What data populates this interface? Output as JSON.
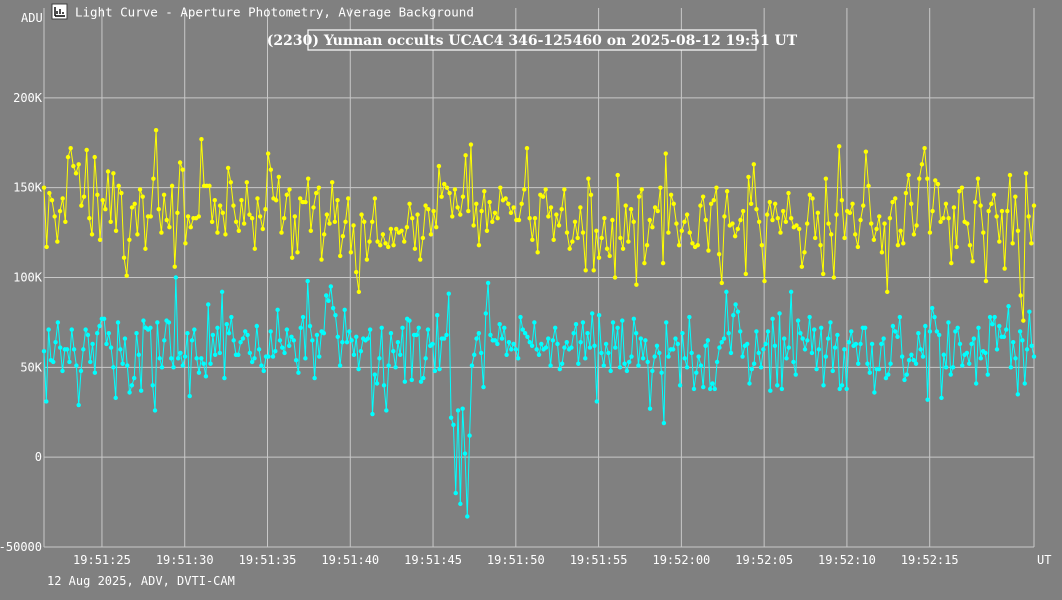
{
  "window": {
    "title": "Light Curve - Aperture Photometry, Average Background",
    "icon": "chart-icon"
  },
  "footer": "12 Aug 2025, ADV, DVTI-CAM",
  "colors": {
    "background": "#808080",
    "grid": "#c8c8c8",
    "target": "#ffff00",
    "comparison": "#00ffff",
    "text": "#ffffff"
  },
  "chart_data": {
    "type": "line",
    "title": "(2230) Yunnan occults UCAC4 346-125460 on 2025-08-12  19:51 UT",
    "ylabel": "ADU",
    "xlabel": "UT",
    "ylim": [
      -50000,
      250000
    ],
    "xlim": [
      "19:51:21.5",
      "19:52:21.3"
    ],
    "grid": true,
    "yticks": [
      {
        "value": 200000,
        "label": "200K"
      },
      {
        "value": 150000,
        "label": "150K"
      },
      {
        "value": 100000,
        "label": "100K"
      },
      {
        "value": 50000,
        "label": "50K"
      },
      {
        "value": 0,
        "label": "0"
      },
      {
        "value": -50000,
        "label": "-50000"
      }
    ],
    "xticks": [
      {
        "t": "19:51:25",
        "label": "19:51:25"
      },
      {
        "t": "19:51:30",
        "label": "19:51:30"
      },
      {
        "t": "19:51:35",
        "label": "19:51:35"
      },
      {
        "t": "19:51:40",
        "label": "19:51:40"
      },
      {
        "t": "19:51:45",
        "label": "19:51:45"
      },
      {
        "t": "19:51:50",
        "label": "19:51:50"
      },
      {
        "t": "19:51:55",
        "label": "19:51:55"
      },
      {
        "t": "19:52:00",
        "label": "19:52:00"
      },
      {
        "t": "19:52:05",
        "label": "19:52:05"
      },
      {
        "t": "19:52:10",
        "label": "19:52:10"
      },
      {
        "t": "19:52:15",
        "label": "19:52:15"
      }
    ],
    "frame_rate_hz": 5,
    "series": [
      {
        "values": [
          150000,
          117000,
          147000,
          143000,
          134000,
          120000,
          137000,
          144000,
          131000,
          167000,
          172000,
          162000,
          158000,
          163000,
          140000,
          145000,
          171000,
          133000,
          124000,
          167000,
          146000,
          121000,
          143000,
          138000,
          159000,
          131000,
          158000,
          126000,
          151000,
          147000,
          111000,
          101000,
          121000,
          139000,
          141000,
          124000,
          149000,
          145000,
          116000,
          134000,
          134000,
          155000,
          182000,
          138000,
          125000,
          146000,
          132000,
          128000,
          151000,
          106000,
          136000,
          164000,
          160000,
          119000,
          134000,
          128000,
          133000,
          133000,
          134000,
          177000,
          151000,
          151000,
          151000,
          131000,
          143000,
          125000,
          140000,
          136000,
          124000,
          161000,
          153000,
          140000,
          131000,
          126000,
          143000,
          130000,
          153000,
          135000,
          133000,
          116000,
          144000,
          134000,
          127000,
          138000,
          169000,
          160000,
          144000,
          143000,
          156000,
          125000,
          133000,
          146000,
          149000,
          111000,
          134000,
          114000,
          144000,
          142000,
          142000,
          155000,
          126000,
          139000,
          147000,
          150000,
          110000,
          124000,
          135000,
          130000,
          153000,
          131000,
          143000,
          112000,
          123000,
          131000,
          144000,
          114000,
          129000,
          103000,
          92000,
          135000,
          131000,
          110000,
          120000,
          131000,
          144000,
          120000,
          118000,
          124000,
          119000,
          117000,
          127000,
          118000,
          127000,
          125000,
          126000,
          120000,
          128000,
          141000,
          133000,
          116000,
          135000,
          110000,
          122000,
          140000,
          138000,
          124000,
          137000,
          128000,
          162000,
          145000,
          152000,
          150000,
          147000,
          134000,
          149000,
          139000,
          135000,
          145000,
          168000,
          137000,
          174000,
          129000,
          141000,
          118000,
          137000,
          148000,
          126000,
          142000,
          131000,
          136000,
          133000,
          150000,
          143000,
          144000,
          141000,
          136000,
          139000,
          132000,
          132000,
          141000,
          149000,
          172000,
          133000,
          121000,
          133000,
          114000,
          146000,
          145000,
          149000,
          134000,
          139000,
          121000,
          135000,
          129000,
          138000,
          149000,
          125000,
          116000,
          120000,
          131000,
          122000,
          139000,
          125000,
          104000,
          155000,
          146000,
          104000,
          126000,
          111000,
          122000,
          133000,
          116000,
          112000,
          132000,
          100000,
          157000,
          122000,
          116000,
          140000,
          120000,
          138000,
          131000,
          96000,
          145000,
          149000,
          108000,
          118000,
          132000,
          128000,
          139000,
          137000,
          150000,
          108000,
          169000,
          125000,
          146000,
          141000,
          130000,
          118000,
          126000,
          131000,
          135000,
          125000,
          119000,
          117000,
          118000,
          140000,
          145000,
          132000,
          115000,
          141000,
          143000,
          150000,
          113000,
          97000,
          134000,
          148000,
          129000,
          130000,
          123000,
          127000,
          132000,
          137000,
          102000,
          156000,
          141000,
          163000,
          138000,
          131000,
          118000,
          98000,
          135000,
          142000,
          132000,
          141000,
          133000,
          125000,
          137000,
          131000,
          147000,
          133000,
          128000,
          129000,
          127000,
          106000,
          114000,
          130000,
          146000,
          144000,
          122000,
          136000,
          118000,
          102000,
          155000,
          130000,
          124000,
          100000,
          135000,
          173000,
          143000,
          122000,
          137000,
          136000,
          141000,
          124000,
          117000,
          132000,
          140000,
          170000,
          151000,
          130000,
          121000,
          127000,
          134000,
          114000,
          130000,
          92000,
          133000,
          142000,
          144000,
          118000,
          126000,
          119000,
          147000,
          157000,
          141000,
          124000,
          129000,
          155000,
          163000,
          172000,
          155000,
          125000,
          137000,
          154000,
          152000,
          131000,
          133000,
          141000,
          133000,
          108000,
          139000,
          117000,
          148000,
          150000,
          131000,
          130000,
          118000,
          109000,
          142000,
          155000,
          140000,
          125000,
          98000,
          137000,
          141000,
          146000,
          134000,
          120000,
          137000,
          105000,
          137000,
          157000,
          119000,
          145000,
          126000,
          90000,
          76000,
          158000,
          134000,
          119000,
          140000
        ]
      },
      {
        "values": [
          59000,
          31000,
          71000,
          54000,
          53000,
          64000,
          75000,
          61000,
          48000,
          60000,
          60000,
          53000,
          71000,
          60000,
          51000,
          29000,
          48000,
          60000,
          71000,
          68000,
          53000,
          63000,
          47000,
          69000,
          73000,
          77000,
          77000,
          63000,
          69000,
          61000,
          50000,
          33000,
          75000,
          60000,
          52000,
          66000,
          51000,
          36000,
          40000,
          44000,
          69000,
          57000,
          37000,
          76000,
          72000,
          71000,
          72000,
          40000,
          26000,
          75000,
          55000,
          50000,
          65000,
          76000,
          75000,
          55000,
          50000,
          100000,
          55000,
          58000,
          51000,
          56000,
          69000,
          34000,
          65000,
          71000,
          55000,
          47000,
          55000,
          52000,
          45000,
          85000,
          52000,
          68000,
          57000,
          72000,
          58000,
          92000,
          44000,
          74000,
          69000,
          78000,
          65000,
          57000,
          57000,
          64000,
          66000,
          70000,
          68000,
          58000,
          53000,
          55000,
          73000,
          60000,
          51000,
          48000,
          56000,
          56000,
          70000,
          56000,
          59000,
          82000,
          65000,
          61000,
          58000,
          71000,
          62000,
          67000,
          65000,
          54000,
          47000,
          72000,
          78000,
          55000,
          98000,
          73000,
          65000,
          44000,
          68000,
          56000,
          70000,
          69000,
          90000,
          87000,
          95000,
          83000,
          79000,
          67000,
          51000,
          64000,
          82000,
          64000,
          70000,
          65000,
          57000,
          67000,
          49000,
          59000,
          66000,
          65000,
          66000,
          71000,
          24000,
          46000,
          41000,
          55000,
          72000,
          40000,
          26000,
          51000,
          69000,
          59000,
          50000,
          64000,
          57000,
          72000,
          42000,
          77000,
          76000,
          43000,
          68000,
          68000,
          72000,
          42000,
          44000,
          55000,
          71000,
          62000,
          63000,
          48000,
          79000,
          49000,
          66000,
          66000,
          68000,
          91000,
          22000,
          18000,
          -20000,
          26000,
          -26000,
          27000,
          2000,
          -33000,
          12000,
          51000,
          57000,
          66000,
          69000,
          58000,
          39000,
          80000,
          97000,
          68000,
          65000,
          65000,
          63000,
          74000,
          66000,
          72000,
          57000,
          64000,
          60000,
          63000,
          60000,
          55000,
          78000,
          71000,
          69000,
          67000,
          64000,
          62000,
          75000,
          60000,
          57000,
          63000,
          60000,
          61000,
          66000,
          51000,
          65000,
          72000,
          63000,
          49000,
          52000,
          61000,
          64000,
          60000,
          61000,
          69000,
          74000,
          52000,
          64000,
          75000,
          55000,
          69000,
          61000,
          80000,
          62000,
          31000,
          79000,
          58000,
          51000,
          63000,
          58000,
          48000,
          75000,
          61000,
          72000,
          50000,
          76000,
          52000,
          48000,
          53000,
          56000,
          77000,
          69000,
          51000,
          66000,
          55000,
          65000,
          53000,
          27000,
          48000,
          56000,
          62000,
          58000,
          47000,
          19000,
          75000,
          56000,
          60000,
          60000,
          66000,
          63000,
          40000,
          69000,
          55000,
          50000,
          78000,
          58000,
          38000,
          47000,
          56000,
          51000,
          39000,
          62000,
          65000,
          38000,
          41000,
          38000,
          53000,
          61000,
          64000,
          66000,
          92000,
          69000,
          58000,
          79000,
          85000,
          81000,
          70000,
          56000,
          62000,
          63000,
          41000,
          49000,
          52000,
          70000,
          58000,
          50000,
          60000,
          63000,
          70000,
          37000,
          77000,
          62000,
          40000,
          80000,
          38000,
          66000,
          55000,
          61000,
          92000,
          53000,
          46000,
          76000,
          69000,
          66000,
          60000,
          65000,
          78000,
          58000,
          71000,
          49000,
          60000,
          72000,
          40000,
          56000,
          66000,
          75000,
          48000,
          61000,
          68000,
          38000,
          40000,
          60000,
          38000,
          64000,
          70000,
          62000,
          63000,
          52000,
          63000,
          72000,
          72000,
          52000,
          47000,
          63000,
          36000,
          49000,
          49000,
          63000,
          66000,
          44000,
          46000,
          52000,
          73000,
          70000,
          67000,
          78000,
          56000,
          43000,
          46000,
          54000,
          57000,
          54000,
          52000,
          69000,
          60000,
          56000,
          73000,
          32000,
          70000,
          83000,
          78000,
          70000,
          68000,
          33000,
          57000,
          50000,
          75000,
          46000,
          50000,
          70000,
          72000,
          63000,
          51000,
          57000,
          58000,
          52000,
          63000,
          66000,
          41000,
          72000,
          55000,
          59000,
          58000,
          46000,
          78000,
          74000,
          78000,
          60000,
          73000,
          67000,
          67000,
          71000,
          84000,
          50000,
          64000,
          55000,
          35000,
          70000,
          65000,
          41000,
          60000,
          81000,
          62000,
          56000
        ]
      }
    ]
  }
}
